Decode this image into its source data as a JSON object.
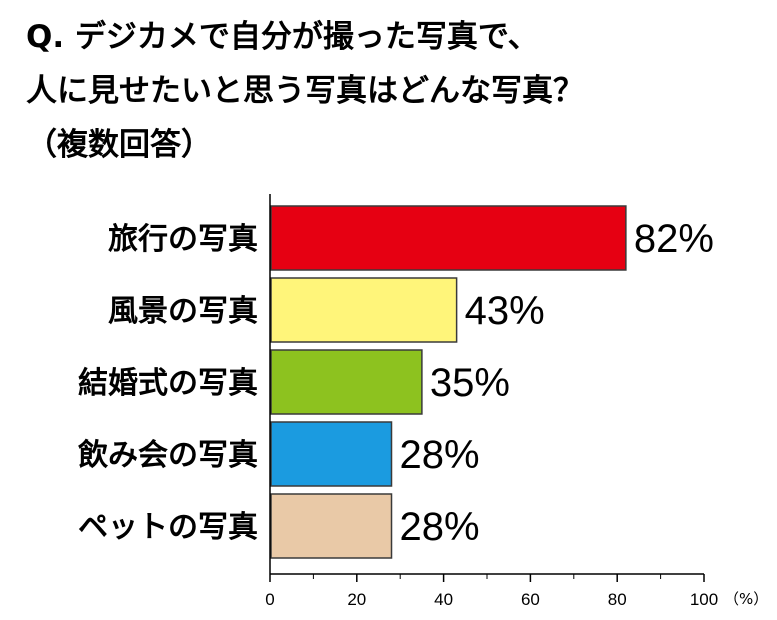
{
  "title_lines": [
    "Q. デジカメで自分が撮った写真で、",
    "人に見せたいと思う写真はどんな写真？",
    "（複数回答）"
  ],
  "chart_data": {
    "type": "bar",
    "orientation": "horizontal",
    "categories": [
      "旅行の写真",
      "風景の写真",
      "結婚式の写真",
      "飲み会の写真",
      "ペットの写真"
    ],
    "values": [
      82,
      43,
      35,
      28,
      28
    ],
    "value_labels": [
      "82%",
      "43%",
      "35%",
      "28%",
      "28%"
    ],
    "colors": [
      "#e60012",
      "#fff57a",
      "#8dc21f",
      "#1b9be0",
      "#e9c9a7"
    ],
    "xlim": [
      0,
      100
    ],
    "x_ticks": [
      "0",
      "20",
      "40",
      "60",
      "80",
      "100"
    ],
    "x_unit": "（%）",
    "grid": false,
    "legend": "none"
  }
}
